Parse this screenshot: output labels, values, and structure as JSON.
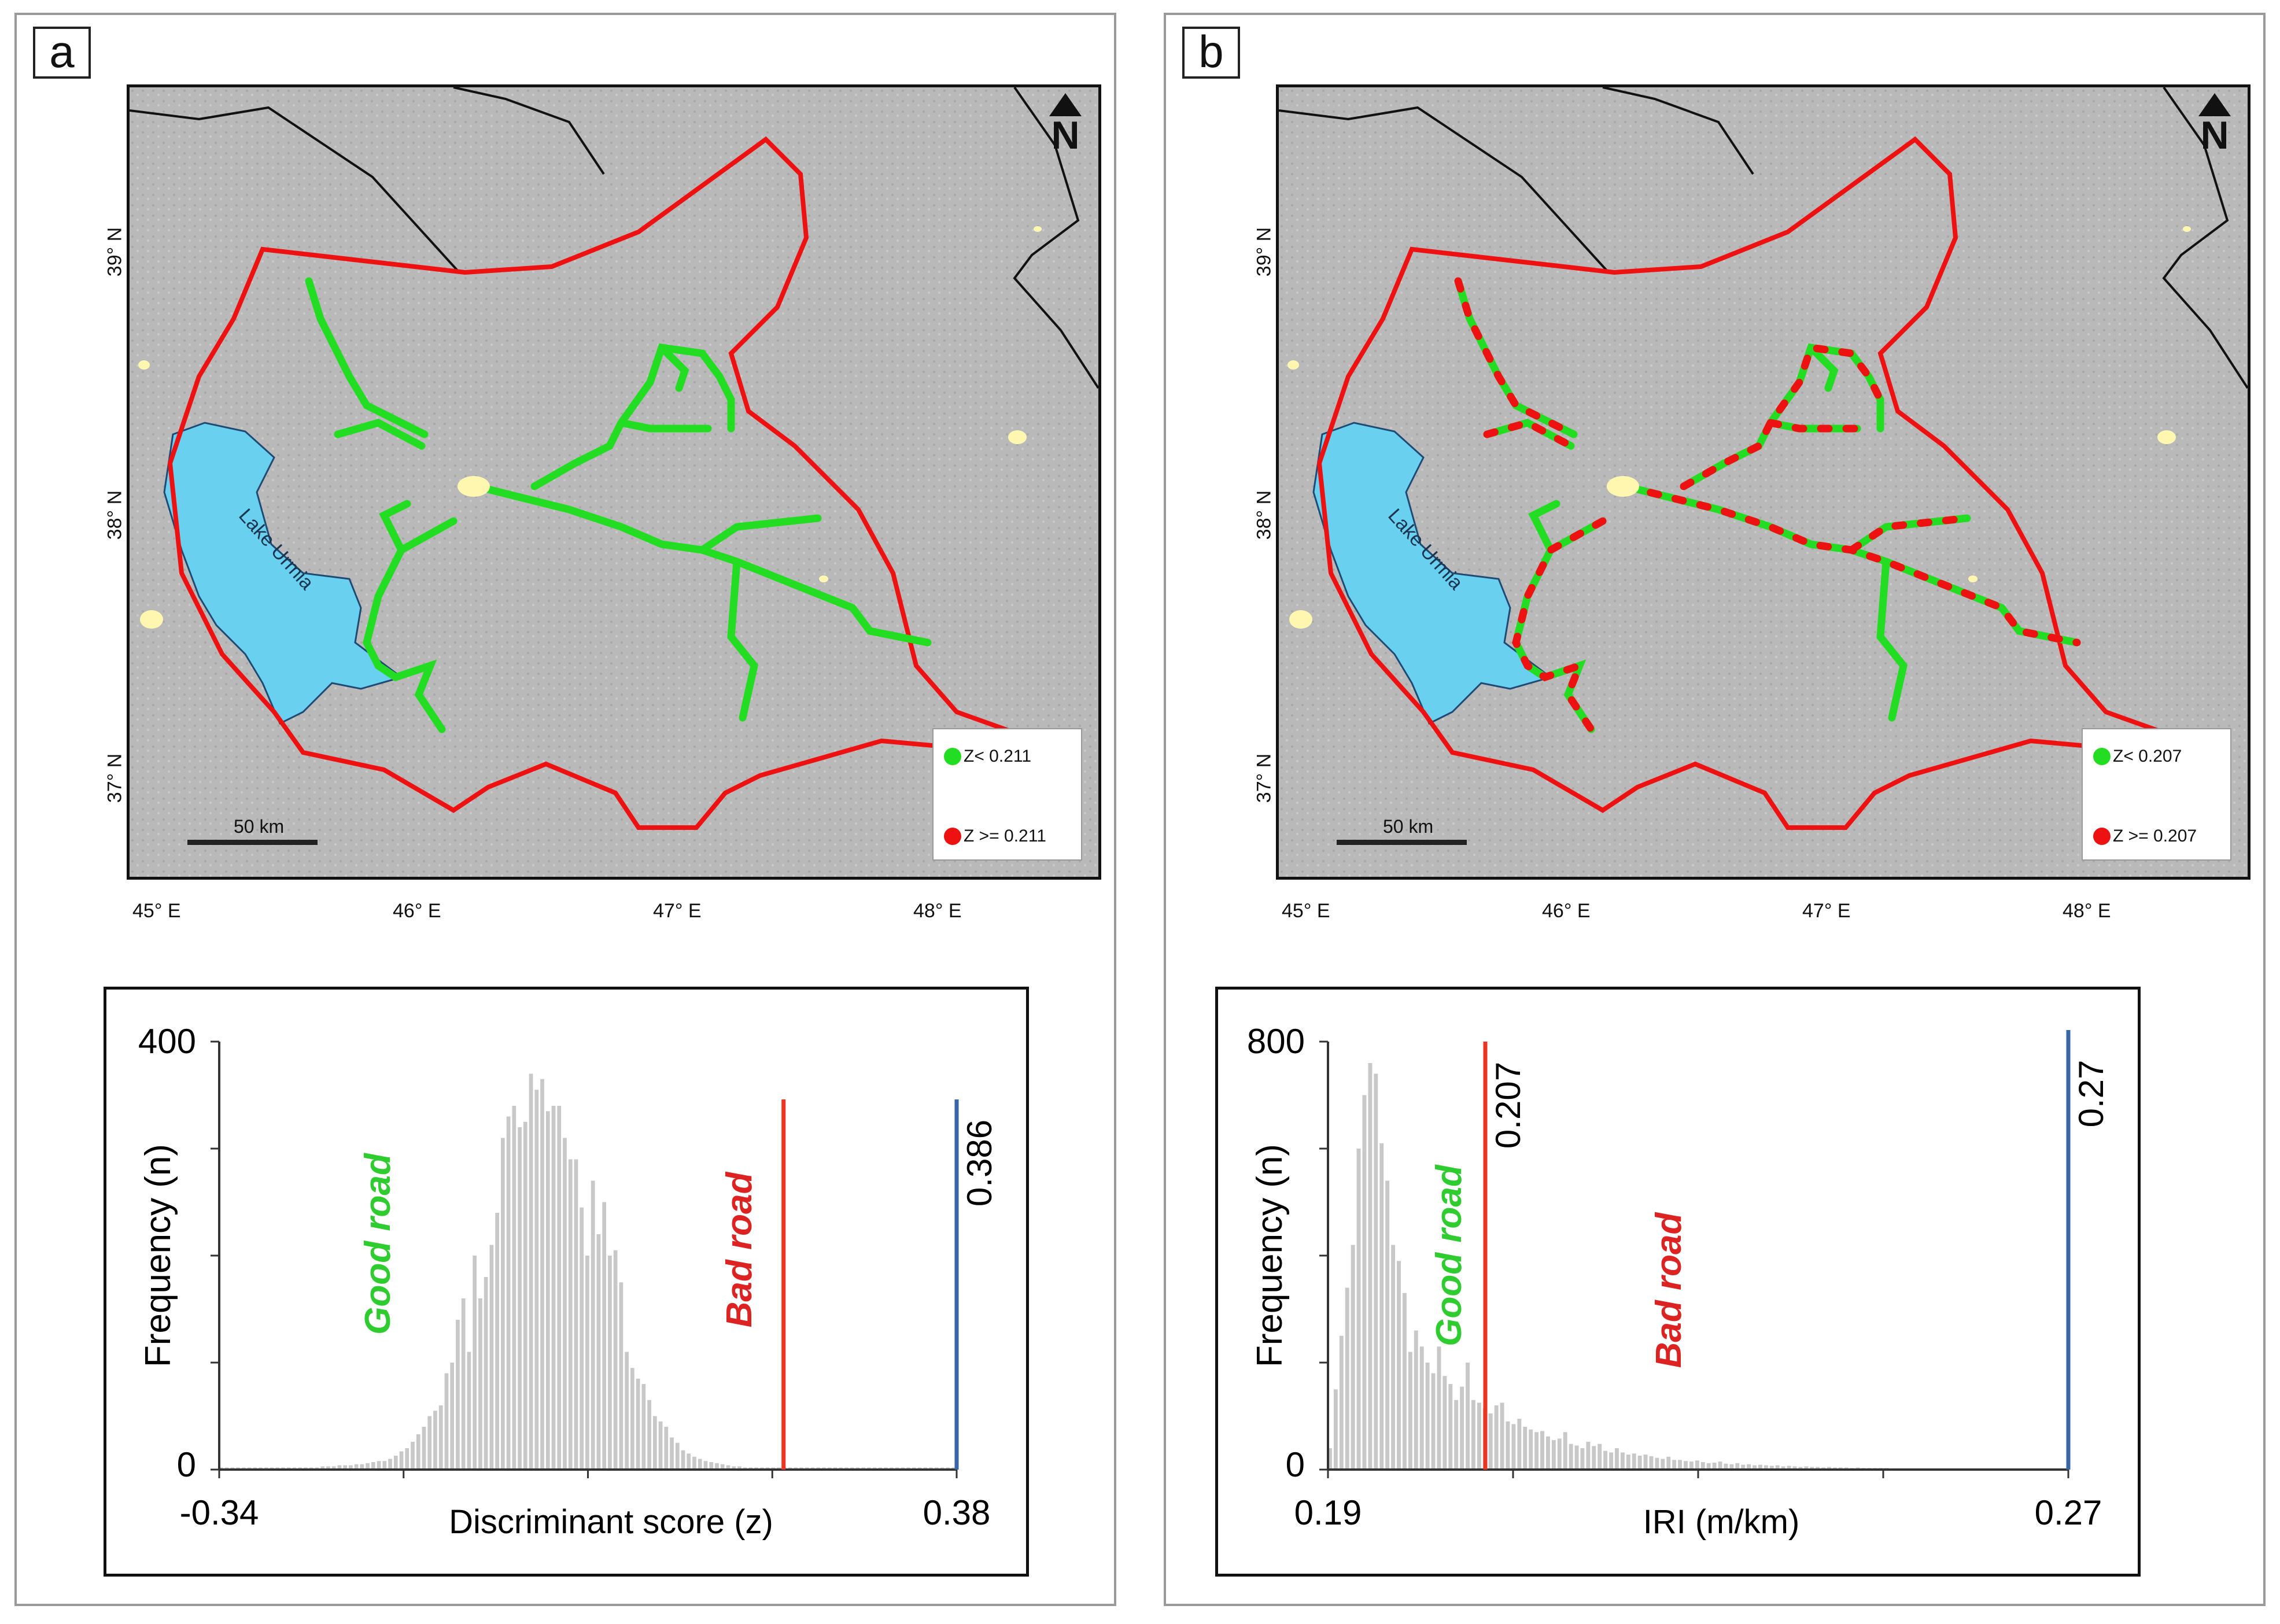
{
  "panels": [
    {
      "letter": "a",
      "map": {
        "lat_labels": [
          "39° N",
          "38° N",
          "37° N"
        ],
        "lon_labels": [
          "45° E",
          "46° E",
          "47° E",
          "48° E"
        ],
        "lake_label": "Lake Urmia",
        "scale_label": "50 km",
        "north_label": "N",
        "legend": [
          {
            "label": "Z< 0.211",
            "color": "#22dd22"
          },
          {
            "label": "Z >= 0.211",
            "color": "#ee1111"
          }
        ],
        "road_style": "green"
      },
      "chart_data": {
        "type": "bar",
        "xlabel": "Discriminant score (z)",
        "ylabel": "Frequency (n)",
        "x_tick_labels": [
          "-0.34",
          "0.38"
        ],
        "y_tick_labels": [
          "0",
          "400"
        ],
        "xlim": [
          -0.34,
          0.38
        ],
        "ylim": [
          0,
          400
        ],
        "threshold": {
          "value": 0.211,
          "color": "#ee3322"
        },
        "max_marker": {
          "value": 0.386,
          "label": "0.386",
          "color": "#3a66a8"
        },
        "good_label": "Good road",
        "bad_label": "Bad road",
        "colors": {
          "bars": "#c8c8c8",
          "good": "#2ecc2e",
          "bad": "#dd2222"
        },
        "bins": {
          "start": -0.34,
          "width": 0.0055,
          "counts": [
            2,
            2,
            2,
            2,
            2,
            2,
            2,
            2,
            2,
            2,
            2,
            2,
            2,
            2,
            2,
            2,
            2,
            2,
            3,
            3,
            3,
            4,
            4,
            4,
            5,
            5,
            6,
            7,
            8,
            8,
            10,
            13,
            17,
            20,
            26,
            33,
            40,
            50,
            55,
            60,
            90,
            100,
            140,
            160,
            110,
            200,
            160,
            180,
            210,
            240,
            310,
            330,
            340,
            320,
            325,
            370,
            355,
            365,
            335,
            340,
            340,
            310,
            290,
            290,
            245,
            200,
            270,
            220,
            250,
            200,
            205,
            175,
            110,
            95,
            85,
            80,
            65,
            50,
            45,
            40,
            30,
            25,
            18,
            15,
            12,
            10,
            8,
            7,
            6,
            5,
            4,
            3,
            3,
            2,
            2,
            2,
            2,
            2,
            2,
            2,
            2,
            2,
            2,
            2,
            2,
            2,
            2,
            2,
            2,
            2,
            2,
            2,
            2,
            2,
            2,
            2,
            2,
            2,
            2,
            2,
            2,
            2,
            2,
            2,
            2,
            2,
            2,
            2,
            2,
            2,
            2
          ]
        }
      }
    },
    {
      "letter": "b",
      "map": {
        "lat_labels": [
          "39° N",
          "38° N",
          "37° N"
        ],
        "lon_labels": [
          "45° E",
          "46° E",
          "47° E",
          "48° E"
        ],
        "lake_label": "Lake Urmia",
        "scale_label": "50 km",
        "north_label": "N",
        "legend": [
          {
            "label": "Z< 0.207",
            "color": "#22dd22"
          },
          {
            "label": "Z >= 0.207",
            "color": "#ee1111"
          }
        ],
        "road_style": "mixed"
      },
      "chart_data": {
        "type": "bar",
        "xlabel": "IRI (m/km)",
        "ylabel": "Frequency (n)",
        "x_tick_labels": [
          "0.19",
          "0.27"
        ],
        "y_tick_labels": [
          "0",
          "800"
        ],
        "xlim": [
          0.19,
          0.27
        ],
        "ylim": [
          0,
          800
        ],
        "threshold": {
          "value": 0.207,
          "label": "0.207",
          "color": "#ee3322"
        },
        "max_marker": {
          "value": 0.27,
          "label": "0.27",
          "color": "#3a66a8"
        },
        "good_label": "Good road",
        "bad_label": "Bad road",
        "colors": {
          "bars": "#c8c8c8",
          "good": "#2ecc2e",
          "bad": "#dd2222"
        },
        "bins": {
          "start": 0.19,
          "width": 0.00062,
          "counts": [
            40,
            150,
            250,
            340,
            420,
            600,
            700,
            760,
            740,
            610,
            540,
            420,
            390,
            330,
            220,
            260,
            230,
            200,
            180,
            230,
            175,
            160,
            130,
            155,
            200,
            130,
            125,
            115,
            105,
            120,
            125,
            90,
            85,
            95,
            80,
            75,
            70,
            72,
            62,
            55,
            58,
            70,
            48,
            45,
            40,
            52,
            44,
            48,
            35,
            32,
            40,
            32,
            28,
            30,
            26,
            28,
            25,
            22,
            20,
            24,
            18,
            18,
            16,
            15,
            17,
            14,
            12,
            13,
            15,
            11,
            10,
            12,
            9,
            10,
            8,
            9,
            8,
            7,
            8,
            6,
            7,
            6,
            5,
            6,
            5,
            5,
            4,
            5,
            4,
            4,
            4,
            3,
            4,
            3,
            3,
            3,
            3,
            3,
            2,
            2,
            2,
            2,
            2,
            2,
            2,
            2,
            2,
            2,
            2,
            2,
            2,
            2,
            2,
            2,
            2,
            2,
            2,
            2,
            2,
            2,
            2,
            2,
            2,
            2,
            2,
            2,
            2,
            2,
            2
          ]
        }
      }
    }
  ]
}
